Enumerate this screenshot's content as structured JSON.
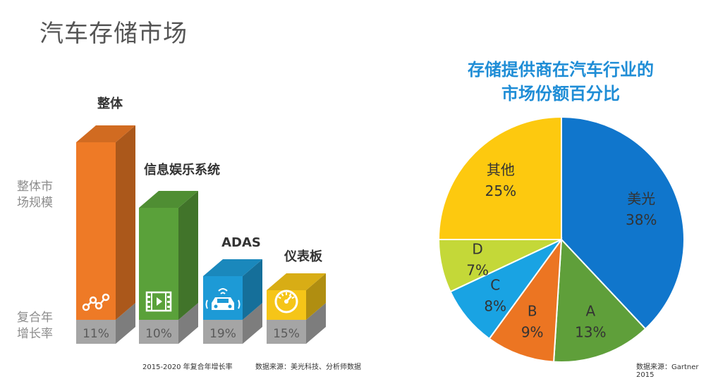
{
  "page": {
    "title": "汽车存储市场"
  },
  "axis_labels": {
    "market_size": [
      "整体市",
      "场规模"
    ],
    "cagr": [
      "复合年",
      "增长率"
    ]
  },
  "footnotes": {
    "cagr_period": "2015-2020 年复合年增长率",
    "left_source": "数据来源：美光科技、分析师数据",
    "right_source": "数据来源：Gartner 2015"
  },
  "chart_data": [
    {
      "type": "bar",
      "categories": [
        "整体",
        "信息娱乐系统",
        "ADAS",
        "仪表板"
      ],
      "growth_labels": [
        "11%",
        "10%",
        "19%",
        "15%"
      ],
      "colors": [
        "#ee7a26",
        "#5aa13a",
        "#1d9ad6",
        "#f5c518"
      ],
      "icons": [
        "network-nodes-icon",
        "film-strip-icon",
        "connected-car-icon",
        "speedometer-icon"
      ]
    },
    {
      "type": "pie",
      "title": [
        "存储提供商在汽车行业的",
        "市场份额百分比"
      ],
      "slices": [
        {
          "label": "美光",
          "value": 38,
          "display": "38%",
          "color": "#1076cc"
        },
        {
          "label": "A",
          "value": 13,
          "display": "13%",
          "color": "#5f9f3a"
        },
        {
          "label": "B",
          "value": 9,
          "display": "9%",
          "color": "#ec7522"
        },
        {
          "label": "C",
          "value": 8,
          "display": "8%",
          "color": "#19a3e3"
        },
        {
          "label": "D",
          "value": 7,
          "display": "7%",
          "color": "#c4d838"
        },
        {
          "label": "其他",
          "value": 25,
          "display": "25%",
          "color": "#fdc90f"
        }
      ]
    }
  ]
}
